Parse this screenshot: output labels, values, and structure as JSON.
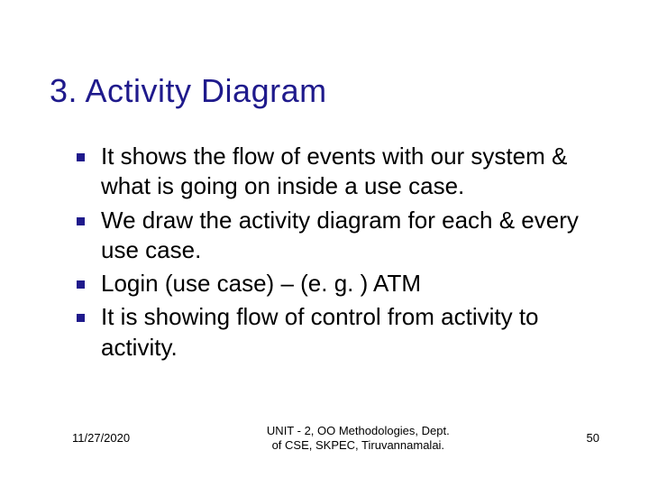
{
  "slide": {
    "title": "3. Activity Diagram",
    "title_color": "#1f1a8c",
    "title_fontsize": 36,
    "background_color": "#ffffff",
    "bullets": [
      {
        "text": "It shows the flow of events with our system & what is going on inside a use case."
      },
      {
        "text": "We draw the activity diagram for each & every use case."
      },
      {
        "text": "Login (use case) – (e. g. ) ATM"
      },
      {
        "text": "It is showing flow of control from activity to activity."
      }
    ],
    "bullet_marker_color": "#1f1a8c",
    "bullet_text_color": "#000000",
    "bullet_fontsize": 26
  },
  "footer": {
    "date": "11/27/2020",
    "center_line1": "UNIT - 2, OO Methodologies, Dept.",
    "center_line2": "of CSE, SKPEC, Tiruvannamalai.",
    "page_number": "50",
    "fontsize": 13,
    "color": "#000000"
  }
}
